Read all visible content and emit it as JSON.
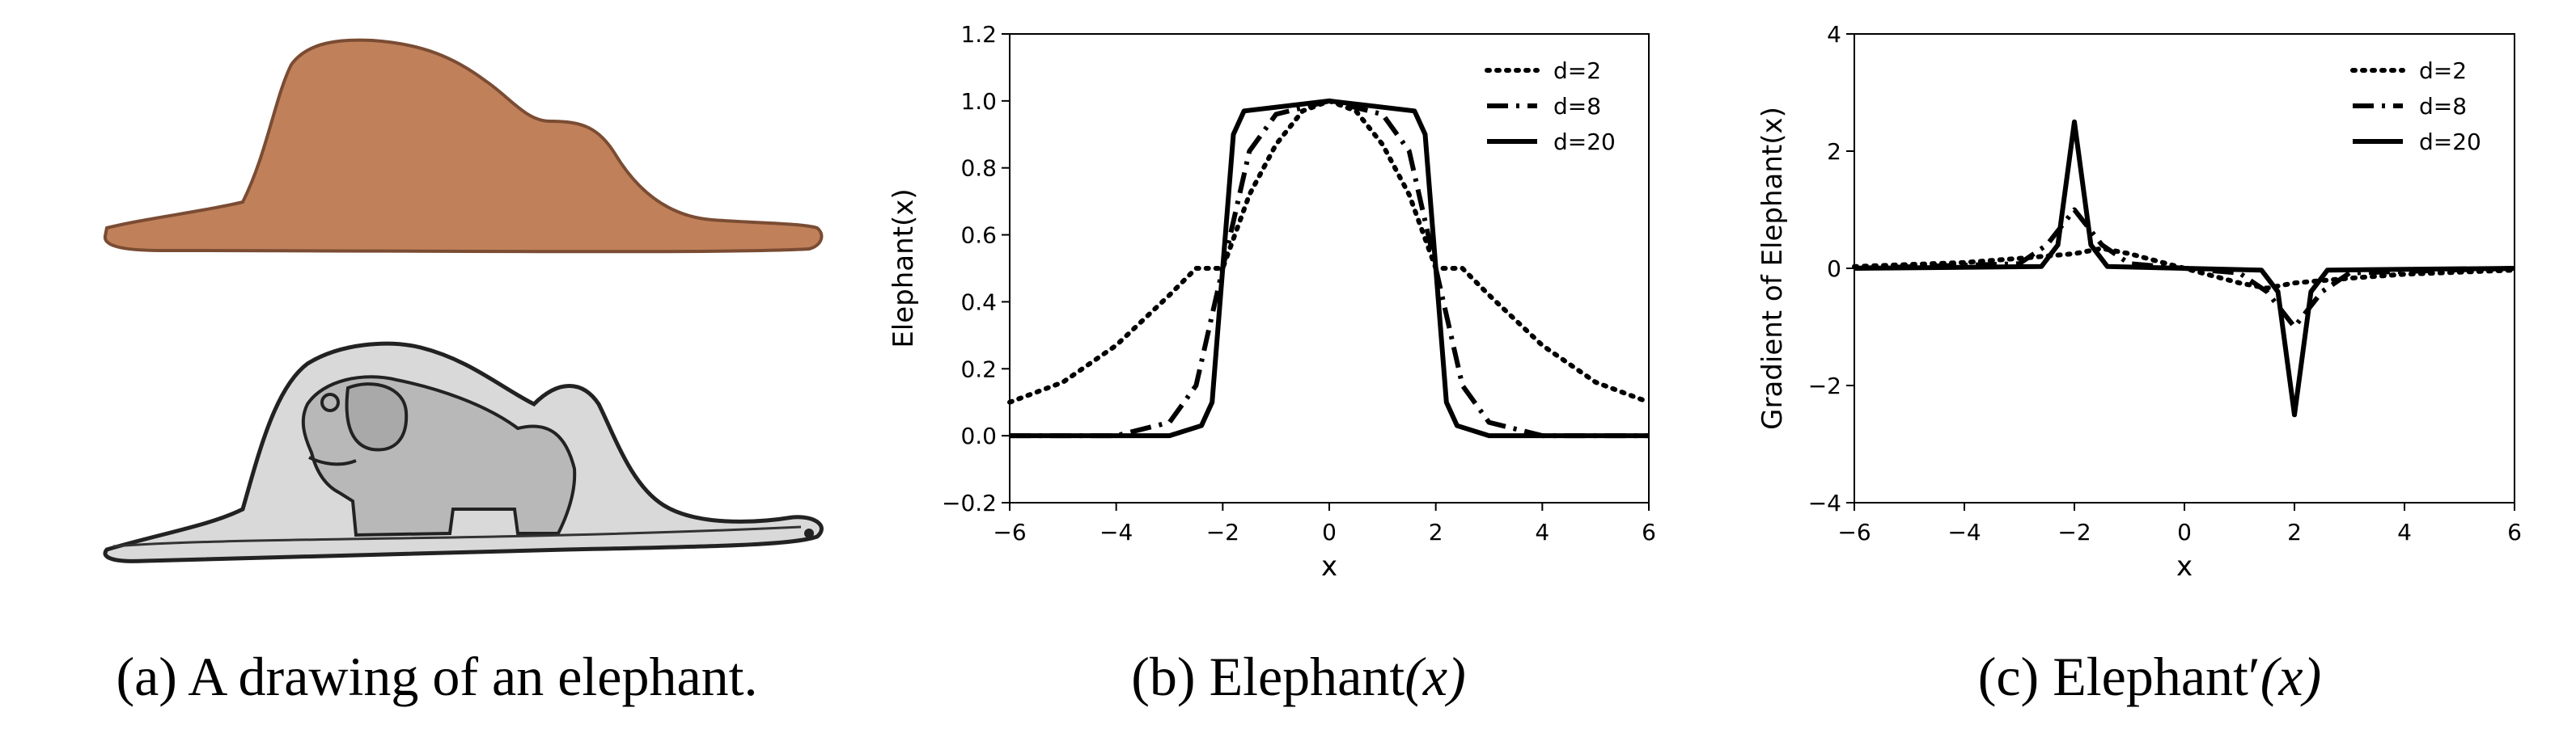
{
  "panels": {
    "a": {
      "caption_prefix": "(a)",
      "caption_text": "A drawing of an elephant."
    },
    "b": {
      "caption_prefix": "(b)",
      "caption_text": "Elephant",
      "caption_math": "(x)"
    },
    "c": {
      "caption_prefix": "(c)",
      "caption_text": "Elephant′",
      "caption_math": "(x)"
    }
  },
  "colors": {
    "boa_fill": "#c0805a",
    "boa_outline": "#7a4c33",
    "elephant_fill": "#cdcdcd",
    "line": "#000000"
  },
  "chart_data": [
    {
      "type": "line",
      "function": "Elephant",
      "xlabel": "x",
      "ylabel": "Elephant(x)",
      "xlim": [
        -6,
        6
      ],
      "ylim": [
        -0.2,
        1.2
      ],
      "xticks": [
        -6,
        -4,
        -2,
        0,
        2,
        4,
        6
      ],
      "yticks": [
        -0.2,
        0.0,
        0.2,
        0.4,
        0.6,
        0.8,
        1.0,
        1.2
      ],
      "xtick_labels": [
        "−6",
        "−4",
        "−2",
        "0",
        "2",
        "4",
        "6"
      ],
      "ytick_labels": [
        "−0.2",
        "0.0",
        "0.2",
        "0.4",
        "0.6",
        "0.8",
        "1.0",
        "1.2"
      ],
      "legend_position": "top-right",
      "grid": false,
      "series": [
        {
          "name": "d=2",
          "d": 2,
          "style": "dotted",
          "x": [
            -6,
            -5,
            -4,
            -3,
            -2.5,
            -2,
            -1.5,
            -1,
            -0.5,
            0,
            0.5,
            1,
            1.5,
            2,
            2.5,
            3,
            4,
            5,
            6
          ],
          "y": [
            0.1,
            0.16,
            0.27,
            0.42,
            0.5,
            0.5,
            0.72,
            0.87,
            0.97,
            1.0,
            0.97,
            0.87,
            0.72,
            0.5,
            0.5,
            0.42,
            0.27,
            0.16,
            0.1
          ]
        },
        {
          "name": "d=8",
          "d": 8,
          "style": "dashdot",
          "x": [
            -6,
            -4,
            -3,
            -2.5,
            -2,
            -1.5,
            -1,
            0,
            1,
            1.5,
            2,
            2.5,
            3,
            4,
            6
          ],
          "y": [
            0.0,
            0.0,
            0.04,
            0.15,
            0.5,
            0.85,
            0.96,
            1.0,
            0.96,
            0.85,
            0.5,
            0.15,
            0.04,
            0.0,
            0.0
          ]
        },
        {
          "name": "d=20",
          "d": 20,
          "style": "solid",
          "x": [
            -6,
            -3,
            -2.4,
            -2.2,
            -2,
            -1.8,
            -1.6,
            0,
            1.6,
            1.8,
            2,
            2.2,
            2.4,
            3,
            6
          ],
          "y": [
            0.0,
            0.0,
            0.03,
            0.1,
            0.5,
            0.9,
            0.97,
            1.0,
            0.97,
            0.9,
            0.5,
            0.1,
            0.03,
            0.0,
            0.0
          ]
        }
      ]
    },
    {
      "type": "line",
      "function": "Gradient of Elephant",
      "xlabel": "x",
      "ylabel": "Gradient of Elephant(x)",
      "xlim": [
        -6,
        6
      ],
      "ylim": [
        -4,
        4
      ],
      "xticks": [
        -6,
        -4,
        -2,
        0,
        2,
        4,
        6
      ],
      "yticks": [
        -4,
        -2,
        0,
        2,
        4
      ],
      "xtick_labels": [
        "−6",
        "−4",
        "−2",
        "0",
        "2",
        "4",
        "6"
      ],
      "ytick_labels": [
        "−4",
        "−2",
        "0",
        "2",
        "4"
      ],
      "legend_position": "top-right",
      "grid": false,
      "series": [
        {
          "name": "d=2",
          "d": 2,
          "style": "dotted",
          "x": [
            -6,
            -4,
            -3,
            -2,
            -1.5,
            -1,
            0,
            1,
            1.5,
            2,
            3,
            4,
            6
          ],
          "y": [
            0.03,
            0.1,
            0.17,
            0.25,
            0.34,
            0.25,
            0.0,
            -0.25,
            -0.34,
            -0.25,
            -0.17,
            -0.1,
            -0.03
          ]
        },
        {
          "name": "d=8",
          "d": 8,
          "style": "dashdot",
          "x": [
            -6,
            -3,
            -2.5,
            -2,
            -1.5,
            -1,
            0,
            1,
            1.5,
            2,
            2.5,
            3,
            6
          ],
          "y": [
            0.0,
            0.08,
            0.4,
            1.0,
            0.4,
            0.08,
            0.0,
            -0.08,
            -0.4,
            -1.0,
            -0.4,
            -0.08,
            0.0
          ]
        },
        {
          "name": "d=20",
          "d": 20,
          "style": "solid",
          "x": [
            -6,
            -2.6,
            -2.3,
            -2,
            -1.7,
            -1.4,
            0,
            1.4,
            1.7,
            2,
            2.3,
            2.6,
            6
          ],
          "y": [
            0.0,
            0.03,
            0.4,
            2.5,
            0.4,
            0.03,
            0.0,
            -0.03,
            -0.4,
            -2.5,
            -0.4,
            -0.03,
            0.0
          ]
        }
      ]
    }
  ]
}
